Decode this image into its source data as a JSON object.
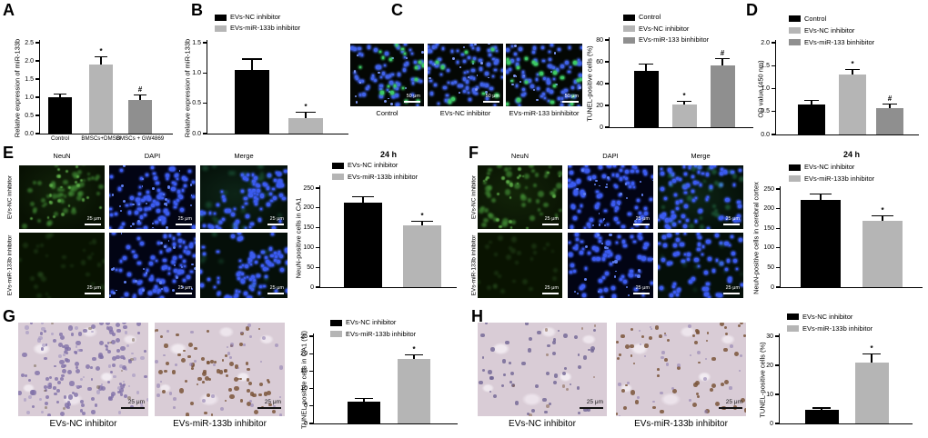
{
  "figure": {
    "background": "#ffffff"
  },
  "colors": {
    "bar_black": "#000000",
    "bar_light_gray": "#b5b5b5",
    "bar_mid_gray": "#8f8f8f"
  },
  "panels": {
    "A": {
      "label": "A"
    },
    "B": {
      "label": "B"
    },
    "C": {
      "label": "C",
      "images": [
        {
          "label": "Control",
          "scale_bar": "50 μm"
        },
        {
          "label": "EVs-NC inhibitor",
          "scale_bar": "50 μm"
        },
        {
          "label": "EVs-miR-133 binhibitor",
          "scale_bar": "50 μm"
        }
      ]
    },
    "D": {
      "label": "D"
    },
    "E": {
      "label": "E",
      "col_headers": [
        "NeuN",
        "DAPI",
        "Merge"
      ],
      "row_labels": [
        "EVs-NC inhibitor",
        "EVs-miR-133b inhibitor"
      ],
      "scale_bar": "25 μm"
    },
    "F": {
      "label": "F",
      "col_headers": [
        "NeuN",
        "DAPI",
        "Merge"
      ],
      "row_labels": [
        "EVs-NC inhibitor",
        "EVs-miR-133b inhibitor"
      ],
      "scale_bar": "25 μm"
    },
    "G": {
      "label": "G",
      "images": [
        {
          "label": "EVs-NC inhibitor",
          "scale_bar": "25 μm"
        },
        {
          "label": "EVs-miR-133b inhibitor",
          "scale_bar": "25 μm"
        }
      ]
    },
    "H": {
      "label": "H",
      "images": [
        {
          "label": "EVs-NC inhibitor",
          "scale_bar": "25 μm"
        },
        {
          "label": "EVs-miR-133b inhibitor",
          "scale_bar": "25 μm"
        }
      ]
    }
  },
  "chart_data": [
    {
      "panel": "A",
      "type": "bar",
      "title": "",
      "ylabel": "Relative expression of miR-133b",
      "yticks": [
        "0.0",
        "0.5",
        "1.0",
        "1.5",
        "2.0",
        "2.5"
      ],
      "ylim": [
        0,
        2.5
      ],
      "categories": [
        "Control",
        "BMSCs+DMSO",
        "BMSCs + GW4869"
      ],
      "values": [
        1.0,
        1.9,
        0.93
      ],
      "errors": [
        0.09,
        0.22,
        0.13
      ],
      "sig": [
        "",
        "*",
        "#"
      ],
      "colors": [
        "#000000",
        "#b5b5b5",
        "#8f8f8f"
      ]
    },
    {
      "panel": "B",
      "type": "bar",
      "title": "",
      "ylabel": "Relative expression of miR-133b",
      "yticks": [
        "0.0",
        "0.5",
        "1.0",
        "1.5"
      ],
      "ylim": [
        0,
        1.5
      ],
      "values": [
        1.05,
        0.26
      ],
      "errors": [
        0.18,
        0.09
      ],
      "sig": [
        "",
        "*"
      ],
      "colors": [
        "#000000",
        "#b5b5b5"
      ],
      "legend": [
        {
          "label": "EVs-NC inhibitor",
          "color": "#000000"
        },
        {
          "label": "EVs-miR-133b inhibitor",
          "color": "#b5b5b5"
        }
      ]
    },
    {
      "panel": "C",
      "type": "bar",
      "title": "",
      "ylabel": "TUNEL-positive cells (%)",
      "yticks": [
        "0",
        "20",
        "40",
        "60",
        "80"
      ],
      "ylim": [
        0,
        80
      ],
      "values": [
        52,
        21,
        57
      ],
      "errors": [
        6,
        3,
        6
      ],
      "sig": [
        "",
        "*",
        "#"
      ],
      "colors": [
        "#000000",
        "#b5b5b5",
        "#8f8f8f"
      ],
      "legend": [
        {
          "label": "Control",
          "color": "#000000"
        },
        {
          "label": "EVs-NC inhibitor",
          "color": "#b5b5b5"
        },
        {
          "label": "EVs-miR-133 binhibitor",
          "color": "#8f8f8f"
        }
      ]
    },
    {
      "panel": "D",
      "type": "bar",
      "title": "",
      "ylabel": "OD value (450 nm)",
      "yticks": [
        "0.0",
        "0.5",
        "1.0",
        "1.5",
        "2.0"
      ],
      "ylim": [
        0,
        2.0
      ],
      "values": [
        0.66,
        1.3,
        0.58
      ],
      "errors": [
        0.08,
        0.12,
        0.09
      ],
      "sig": [
        "",
        "*",
        "#"
      ],
      "colors": [
        "#000000",
        "#b5b5b5",
        "#8f8f8f"
      ],
      "legend": [
        {
          "label": "Control",
          "color": "#000000"
        },
        {
          "label": "EVs-NC inhibitor",
          "color": "#b5b5b5"
        },
        {
          "label": "EVs-miR-133 binhibitor",
          "color": "#8f8f8f"
        }
      ]
    },
    {
      "panel": "E",
      "type": "bar",
      "title": "24 h",
      "ylabel": "NeuN-positive cells in CA1",
      "yticks": [
        "0",
        "50",
        "100",
        "150",
        "200",
        "250"
      ],
      "ylim": [
        0,
        250
      ],
      "values": [
        214,
        156
      ],
      "errors": [
        15,
        10
      ],
      "sig": [
        "",
        "*"
      ],
      "colors": [
        "#000000",
        "#b5b5b5"
      ],
      "legend": [
        {
          "label": "EVs-NC inhibitor",
          "color": "#000000"
        },
        {
          "label": "EVs-miR-133b inhibitor",
          "color": "#b5b5b5"
        }
      ]
    },
    {
      "panel": "F",
      "type": "bar",
      "title": "24 h",
      "ylabel": "NeuN-positive cells in cerebral cortex",
      "yticks": [
        "0",
        "50",
        "100",
        "150",
        "200",
        "250"
      ],
      "ylim": [
        0,
        250
      ],
      "values": [
        223,
        168
      ],
      "errors": [
        15,
        13
      ],
      "sig": [
        "",
        "*"
      ],
      "colors": [
        "#000000",
        "#b5b5b5"
      ],
      "legend": [
        {
          "label": "EVs-NC inhibitor",
          "color": "#000000"
        },
        {
          "label": "EVs-miR-133b inhibitor",
          "color": "#b5b5b5"
        }
      ]
    },
    {
      "panel": "G",
      "type": "bar",
      "title": "",
      "ylabel": "TUNEL-positive cells in CA1 (%)",
      "yticks": [
        "0",
        "5",
        "10",
        "15",
        "20",
        "25"
      ],
      "ylim": [
        0,
        25
      ],
      "values": [
        6.3,
        18.5
      ],
      "errors": [
        0.8,
        1.2
      ],
      "sig": [
        "",
        "*"
      ],
      "colors": [
        "#000000",
        "#b5b5b5"
      ],
      "legend": [
        {
          "label": "EVs-NC inhibitor",
          "color": "#000000"
        },
        {
          "label": "EVs-miR-133b inhibitor",
          "color": "#b5b5b5"
        }
      ]
    },
    {
      "panel": "H",
      "type": "bar",
      "title": "",
      "ylabel": "TUNEL-positive cells (%)",
      "yticks": [
        "0",
        "10",
        "20",
        "30"
      ],
      "ylim": [
        0,
        30
      ],
      "values": [
        4.6,
        21
      ],
      "errors": [
        0.7,
        3
      ],
      "sig": [
        "",
        "*"
      ],
      "colors": [
        "#000000",
        "#b5b5b5"
      ],
      "legend": [
        {
          "label": "EVs-NC inhibitor",
          "color": "#000000"
        },
        {
          "label": "EVs-miR-133b inhibitor",
          "color": "#b5b5b5"
        }
      ]
    }
  ]
}
